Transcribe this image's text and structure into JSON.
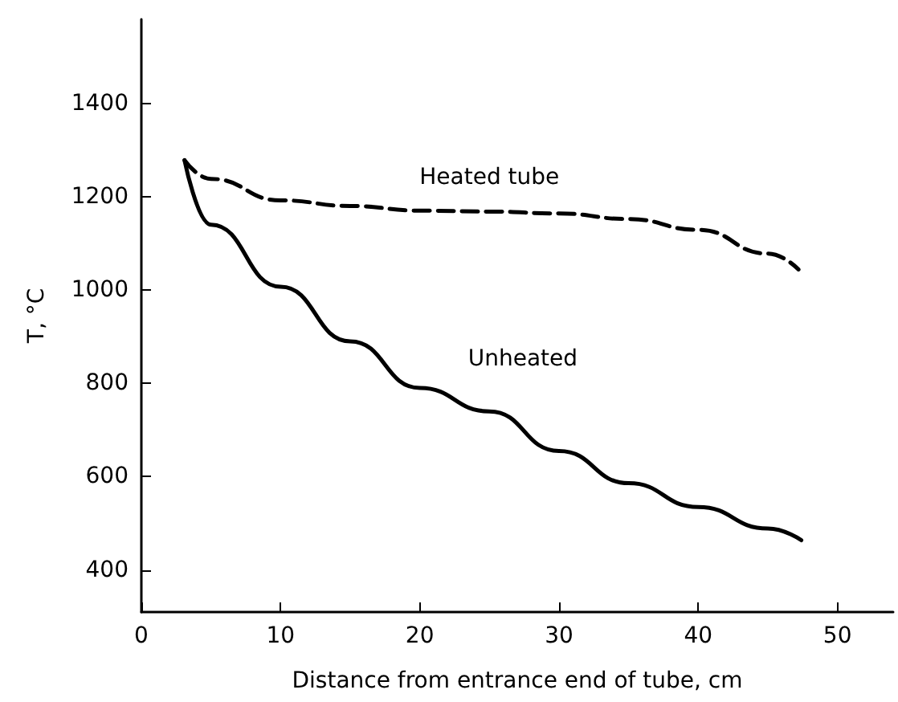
{
  "chart_data": {
    "type": "line",
    "xlabel": "Distance from entrance end of tube, cm",
    "ylabel": "T, °C",
    "xlim": [
      0,
      54
    ],
    "ylim": [
      310,
      1580
    ],
    "xticks": [
      0,
      10,
      20,
      30,
      40,
      50
    ],
    "yticks": [
      400,
      600,
      800,
      1000,
      1200,
      1400
    ],
    "grid": false,
    "legend": false,
    "marker": "none",
    "series": [
      {
        "name": "Heated tube",
        "color": "#000000",
        "line_style": "dashed",
        "x": [
          3.1,
          5,
          10,
          15,
          20,
          25,
          30,
          35,
          40,
          45,
          47.2
        ],
        "values": [
          1278,
          1238,
          1192,
          1180,
          1170,
          1168,
          1164,
          1152,
          1129,
          1078,
          1044
        ]
      },
      {
        "name": "Unheated",
        "color": "#000000",
        "line_style": "solid",
        "x": [
          3.1,
          5,
          10,
          15,
          20,
          25,
          30,
          35,
          40,
          45,
          47.4
        ],
        "values": [
          1278,
          1140,
          1007,
          890,
          790,
          740,
          655,
          586,
          535,
          489,
          464
        ]
      }
    ]
  }
}
